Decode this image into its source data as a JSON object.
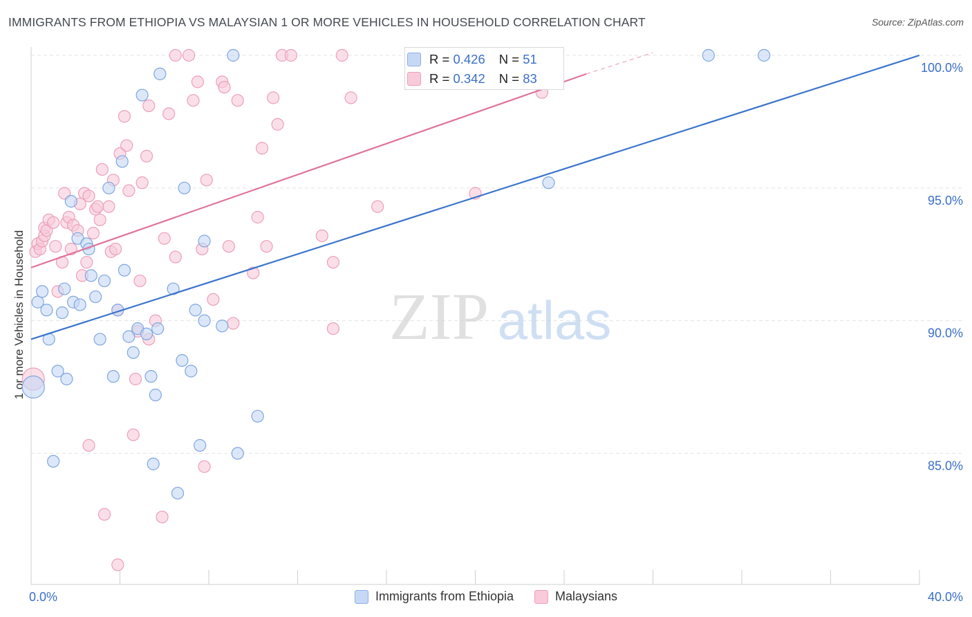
{
  "title": "IMMIGRANTS FROM ETHIOPIA VS MALAYSIAN 1 OR MORE VEHICLES IN HOUSEHOLD CORRELATION CHART",
  "source": "Source: ZipAtlas.com",
  "watermark": {
    "zip": "ZIP",
    "atlas": "atlas"
  },
  "stats": {
    "blue": {
      "r_label": "R =",
      "r_value": "0.426",
      "n_label": "N =",
      "n_value": "51"
    },
    "pink": {
      "r_label": "R =",
      "r_value": "0.342",
      "n_label": "N =",
      "n_value": "83"
    }
  },
  "colors": {
    "blue": "#3a74cc",
    "blue_fill": "#c5d8f5",
    "pink": "#e0739a",
    "pink_fill": "#f9cad9",
    "grid": "#e3e3e3",
    "tick_label": "#3a6fc8"
  },
  "chart_data": {
    "type": "scatter",
    "title": "IMMIGRANTS FROM ETHIOPIA VS MALAYSIAN 1 OR MORE VEHICLES IN HOUSEHOLD CORRELATION CHART",
    "xlabel": "",
    "ylabel": "1 or more Vehicles in Household",
    "xlim": [
      0,
      40
    ],
    "ylim": [
      80.5,
      100.8
    ],
    "x_tick_labels": [
      {
        "value": 0,
        "label": "0.0%"
      },
      {
        "value": 40,
        "label": "40.0%"
      }
    ],
    "y_tick_labels": [
      {
        "value": 85,
        "label": "85.0%"
      },
      {
        "value": 90,
        "label": "90.0%"
      },
      {
        "value": 95,
        "label": "95.0%"
      },
      {
        "value": 100,
        "label": "100.0%"
      }
    ],
    "series": [
      {
        "name": "Immigrants from Ethiopia",
        "color": "blue",
        "trend": {
          "x": [
            0,
            40
          ],
          "y": [
            89.3,
            100.0
          ]
        },
        "points": [
          [
            0.1,
            87.5
          ],
          [
            0.3,
            90.7
          ],
          [
            0.5,
            91.1
          ],
          [
            0.7,
            90.4
          ],
          [
            0.8,
            89.3
          ],
          [
            1.0,
            84.7
          ],
          [
            1.2,
            88.1
          ],
          [
            1.4,
            90.3
          ],
          [
            1.5,
            91.2
          ],
          [
            1.6,
            87.8
          ],
          [
            1.8,
            94.5
          ],
          [
            1.9,
            90.7
          ],
          [
            2.1,
            93.1
          ],
          [
            2.2,
            90.6
          ],
          [
            2.5,
            92.9
          ],
          [
            2.6,
            92.7
          ],
          [
            2.7,
            91.7
          ],
          [
            2.9,
            90.9
          ],
          [
            3.1,
            89.3
          ],
          [
            3.3,
            91.5
          ],
          [
            3.5,
            95.0
          ],
          [
            3.7,
            87.9
          ],
          [
            3.9,
            90.4
          ],
          [
            4.1,
            96.0
          ],
          [
            4.2,
            91.9
          ],
          [
            4.4,
            89.4
          ],
          [
            4.6,
            88.8
          ],
          [
            4.8,
            89.7
          ],
          [
            5.0,
            98.5
          ],
          [
            5.2,
            89.5
          ],
          [
            5.4,
            87.9
          ],
          [
            5.5,
            84.6
          ],
          [
            5.6,
            87.2
          ],
          [
            5.7,
            89.7
          ],
          [
            5.8,
            99.3
          ],
          [
            6.4,
            91.2
          ],
          [
            6.6,
            83.5
          ],
          [
            6.8,
            88.5
          ],
          [
            6.9,
            95.0
          ],
          [
            7.2,
            88.1
          ],
          [
            7.4,
            90.4
          ],
          [
            7.6,
            85.3
          ],
          [
            7.8,
            90.0
          ],
          [
            7.8,
            93.0
          ],
          [
            8.6,
            89.8
          ],
          [
            9.1,
            100.0
          ],
          [
            9.3,
            85.0
          ],
          [
            10.2,
            86.4
          ],
          [
            23.3,
            95.2
          ],
          [
            30.5,
            100.0
          ],
          [
            33.0,
            100.0
          ]
        ]
      },
      {
        "name": "Malaysians",
        "color": "pink",
        "trend": {
          "x": [
            0,
            25
          ],
          "y": [
            92.0,
            99.3
          ]
        },
        "trend_dashed": {
          "x": [
            25,
            28
          ],
          "y": [
            99.3,
            100.1
          ]
        },
        "points": [
          [
            0.1,
            87.8
          ],
          [
            0.2,
            92.6
          ],
          [
            0.3,
            92.9
          ],
          [
            0.4,
            92.7
          ],
          [
            0.5,
            93.0
          ],
          [
            0.6,
            93.2
          ],
          [
            0.6,
            93.5
          ],
          [
            0.7,
            93.4
          ],
          [
            0.8,
            93.8
          ],
          [
            1.0,
            93.7
          ],
          [
            1.1,
            92.8
          ],
          [
            1.2,
            91.1
          ],
          [
            1.4,
            92.2
          ],
          [
            1.5,
            94.8
          ],
          [
            1.6,
            93.7
          ],
          [
            1.7,
            93.9
          ],
          [
            1.8,
            92.7
          ],
          [
            1.9,
            93.6
          ],
          [
            2.1,
            93.4
          ],
          [
            2.2,
            94.4
          ],
          [
            2.3,
            91.7
          ],
          [
            2.4,
            94.8
          ],
          [
            2.5,
            92.2
          ],
          [
            2.6,
            94.7
          ],
          [
            2.6,
            85.3
          ],
          [
            2.8,
            93.3
          ],
          [
            2.9,
            94.2
          ],
          [
            3.0,
            94.3
          ],
          [
            3.1,
            93.8
          ],
          [
            3.2,
            95.7
          ],
          [
            3.3,
            82.7
          ],
          [
            3.5,
            94.3
          ],
          [
            3.6,
            92.6
          ],
          [
            3.7,
            95.3
          ],
          [
            3.8,
            92.7
          ],
          [
            3.9,
            80.8
          ],
          [
            3.9,
            90.4
          ],
          [
            4.0,
            96.3
          ],
          [
            4.2,
            97.7
          ],
          [
            4.3,
            96.6
          ],
          [
            4.4,
            94.9
          ],
          [
            4.6,
            85.7
          ],
          [
            4.7,
            87.8
          ],
          [
            4.8,
            89.6
          ],
          [
            4.9,
            91.5
          ],
          [
            5.0,
            95.2
          ],
          [
            5.2,
            96.2
          ],
          [
            5.3,
            98.1
          ],
          [
            5.3,
            89.3
          ],
          [
            5.6,
            90.0
          ],
          [
            5.9,
            82.6
          ],
          [
            6.0,
            93.1
          ],
          [
            6.2,
            97.8
          ],
          [
            6.5,
            92.4
          ],
          [
            6.5,
            100.0
          ],
          [
            7.1,
            100.0
          ],
          [
            7.3,
            98.3
          ],
          [
            7.5,
            99.0
          ],
          [
            7.7,
            92.7
          ],
          [
            7.8,
            84.5
          ],
          [
            7.9,
            95.3
          ],
          [
            8.2,
            90.8
          ],
          [
            8.6,
            99.0
          ],
          [
            8.7,
            98.8
          ],
          [
            8.9,
            92.8
          ],
          [
            9.1,
            89.9
          ],
          [
            9.3,
            98.3
          ],
          [
            10.0,
            91.8
          ],
          [
            10.2,
            93.9
          ],
          [
            10.4,
            96.5
          ],
          [
            10.6,
            92.8
          ],
          [
            10.9,
            98.4
          ],
          [
            11.1,
            97.4
          ],
          [
            11.3,
            100.0
          ],
          [
            11.7,
            100.0
          ],
          [
            13.1,
            93.2
          ],
          [
            13.6,
            92.2
          ],
          [
            13.6,
            89.7
          ],
          [
            14.0,
            100.0
          ],
          [
            14.4,
            98.4
          ],
          [
            15.6,
            94.3
          ],
          [
            20.0,
            94.8
          ],
          [
            23.0,
            98.6
          ]
        ]
      }
    ]
  },
  "legend": [
    "Immigrants from Ethiopia",
    "Malaysians"
  ]
}
